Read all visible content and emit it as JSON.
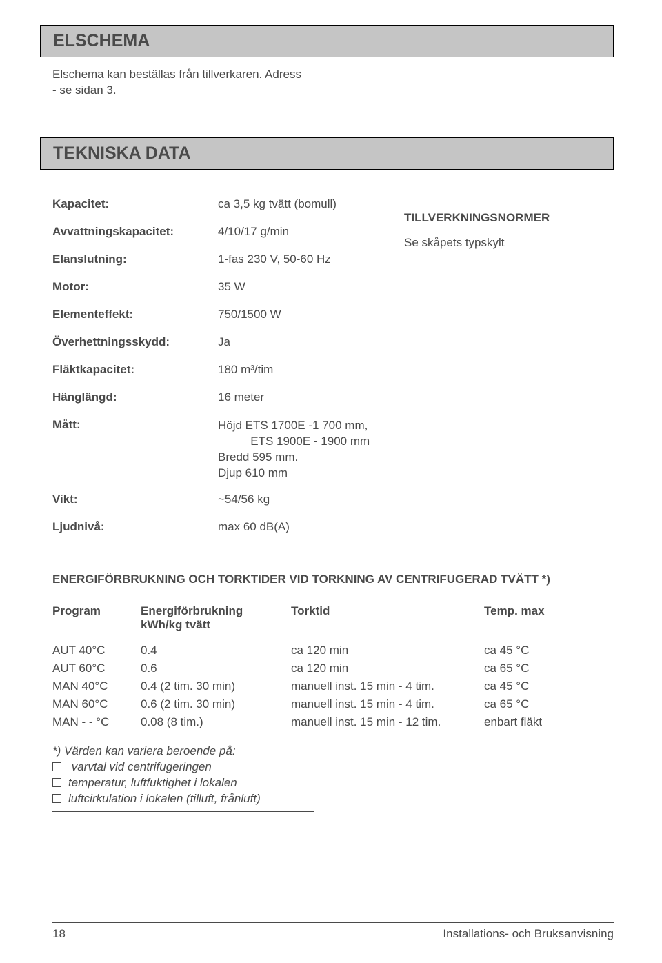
{
  "sections": {
    "elschema": {
      "title": "ELSCHEMA",
      "intro_line1": "Elschema kan beställas från  tillverkaren. Adress",
      "intro_line2": "- se sidan 3."
    },
    "tekniska": {
      "title": "TEKNISKA DATA"
    }
  },
  "specs": {
    "kapacitet": {
      "label": "Kapacitet:",
      "value": "ca 3,5 kg tvätt (bomull)"
    },
    "avvattning": {
      "label": "Avvattningskapacitet:",
      "value": "4/10/17 g/min"
    },
    "elanslutning": {
      "label": "Elanslutning:",
      "value": "1-fas 230 V, 50-60 Hz"
    },
    "motor": {
      "label": "Motor:",
      "value": "35 W"
    },
    "elementeffekt": {
      "label": "Elementeffekt:",
      "value": "750/1500 W"
    },
    "overhettning": {
      "label": "Överhettningsskydd:",
      "value": "Ja"
    },
    "flaktkapacitet": {
      "label": "Fläktkapacitet:",
      "value": "180 m³/tim"
    },
    "hanglangd": {
      "label": "Hänglängd:",
      "value": "16 meter"
    },
    "matt": {
      "label": "Mått:",
      "l1": "Höjd   ETS 1700E -1 700 mm,",
      "l2": "          ETS 1900E - 1900 mm",
      "l3": "Bredd 595 mm.",
      "l4": "Djup 610 mm"
    },
    "vikt": {
      "label": "Vikt:",
      "value": "~54/56 kg"
    },
    "ljudniva": {
      "label": "Ljudnivå:",
      "value": "max 60 dB(A)"
    }
  },
  "tvn": {
    "head": "TILLVERKNINGSNORMER",
    "body": "Se skåpets typskylt"
  },
  "energy": {
    "title": "ENERGIFÖRBRUKNING OCH TORKTIDER VID TORKNING AV CENTRIFUGERAD TVÄTT *)",
    "headers": {
      "program": "Program",
      "energif": "Energiförbrukning",
      "energif_sub": "kWh/kg tvätt",
      "torktid": "Torktid",
      "temp": "Temp. max"
    },
    "rows": [
      {
        "p": "AUT 40°C",
        "e": "0.4",
        "t": "ca 120 min",
        "m": "ca 45 °C"
      },
      {
        "p": "AUT 60°C",
        "e": "0.6",
        "t": "ca 120 min",
        "m": "ca 65 °C"
      },
      {
        "p": "MAN 40°C",
        "e": "0.4 (2 tim. 30 min)",
        "t": "manuell inst. 15 min - 4 tim.",
        "m": "ca 45 °C"
      },
      {
        "p": "MAN 60°C",
        "e": "0.6 (2 tim. 30 min)",
        "t": "manuell inst. 15 min - 4 tim.",
        "m": "ca 65 °C"
      },
      {
        "p": "MAN - - °C",
        "e": "0.08 (8 tim.)",
        "t": "manuell inst. 15 min - 12 tim.",
        "m": "enbart fläkt"
      }
    ]
  },
  "footnotes": {
    "lead": "*)  Värden kan variera beroende på:",
    "b1": "  varvtal vid centrifugeringen",
    "b2": "temperatur, luftfuktighet i lokalen",
    "b3": "luftcirkulation i lokalen (tilluft, frånluft)"
  },
  "footer": {
    "page": "18",
    "title": "Installations- och Bruksanvisning"
  },
  "style": {
    "text_color": "#4a4a4a",
    "header_bg": "#c5c5c5",
    "border_color": "#000000",
    "body_font_size": 17,
    "heading_font_size": 25,
    "page_bg": "#ffffff"
  }
}
